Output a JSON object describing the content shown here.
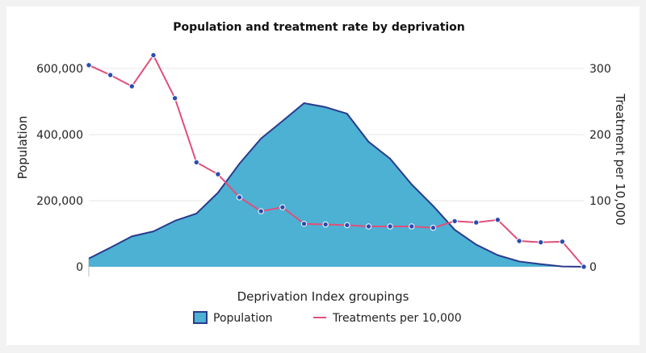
{
  "chart_data": {
    "type": "area",
    "title": "Population and treatment rate by deprivation",
    "xlabel": "Deprivation Index groupings",
    "ylabel_left": "Population",
    "ylabel_right": "Treatment per 10,000",
    "left_ylim": [
      0,
      690000
    ],
    "left_ticks": [
      0,
      200000,
      400000,
      600000
    ],
    "left_tick_labels": [
      "0",
      "200,000",
      "400,000",
      "600,000"
    ],
    "right_ylim": [
      0,
      345
    ],
    "right_ticks": [
      0,
      100,
      200,
      300
    ],
    "right_tick_labels": [
      "0",
      "100",
      "200",
      "300"
    ],
    "grid": true,
    "legend_position": "bottom-center",
    "x_count": 24,
    "series": [
      {
        "name": "Population",
        "type": "area",
        "axis": "left",
        "color": "#4cb1d3",
        "stroke": "#2a3a8c",
        "values": [
          25000,
          58000,
          92000,
          107000,
          139000,
          161000,
          224000,
          312000,
          388000,
          441000,
          495000,
          483000,
          463000,
          378000,
          327000,
          249000,
          184000,
          112000,
          67000,
          35000,
          16000,
          8000,
          1000,
          0
        ]
      },
      {
        "name": "Treatments per 10,000",
        "type": "line",
        "axis": "right",
        "color": "#e0507a",
        "marker_color": "#2a4db0",
        "values": [
          305,
          290,
          273,
          320,
          255,
          158,
          140,
          105,
          84,
          90,
          65,
          64,
          63,
          61,
          61,
          61,
          59,
          69,
          67,
          71,
          39,
          37,
          38,
          0
        ]
      }
    ]
  }
}
